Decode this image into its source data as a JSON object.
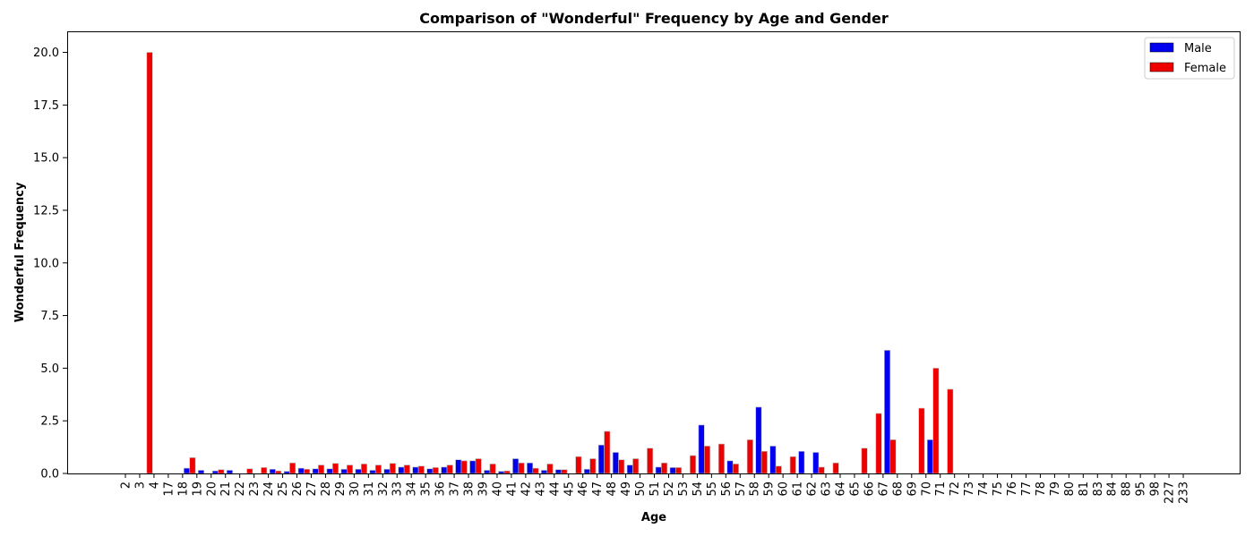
{
  "chart_data": {
    "type": "bar",
    "title": "Comparison of \"Wonderful\" Frequency by Age and Gender",
    "xlabel": "Age",
    "ylabel": "Wonderful Frequency",
    "ylim": [
      0,
      21
    ],
    "yticks": [
      "0.0",
      "2.5",
      "5.0",
      "7.5",
      "10.0",
      "12.5",
      "15.0",
      "17.5",
      "20.0"
    ],
    "grid": false,
    "legend_position": "top-right",
    "categories": [
      "2",
      "3",
      "4",
      "17",
      "18",
      "19",
      "20",
      "21",
      "22",
      "23",
      "24",
      "25",
      "26",
      "27",
      "28",
      "29",
      "30",
      "31",
      "32",
      "33",
      "34",
      "35",
      "36",
      "37",
      "38",
      "39",
      "40",
      "41",
      "42",
      "43",
      "44",
      "45",
      "46",
      "47",
      "48",
      "49",
      "50",
      "51",
      "52",
      "53",
      "54",
      "55",
      "56",
      "57",
      "58",
      "59",
      "60",
      "61",
      "62",
      "63",
      "64",
      "65",
      "66",
      "67",
      "68",
      "69",
      "70",
      "71",
      "72",
      "73",
      "74",
      "75",
      "76",
      "77",
      "78",
      "79",
      "80",
      "81",
      "83",
      "84",
      "88",
      "95",
      "98",
      "227",
      "233"
    ],
    "series": [
      {
        "name": "Male",
        "color": "#0000ee",
        "values": [
          0,
          0,
          0,
          0,
          0.25,
          0.15,
          0.12,
          0.15,
          0,
          0,
          0.2,
          0.1,
          0.25,
          0.22,
          0.22,
          0.2,
          0.2,
          0.15,
          0.2,
          0.3,
          0.3,
          0.22,
          0.3,
          0.65,
          0.6,
          0.15,
          0.1,
          0.7,
          0.5,
          0.15,
          0.18,
          0,
          0.2,
          1.35,
          1.0,
          0.4,
          0,
          0.3,
          0.28,
          0,
          2.3,
          0,
          0.6,
          0,
          3.15,
          1.3,
          0,
          1.05,
          1.0,
          0,
          0,
          0,
          0,
          5.85,
          0,
          0,
          1.6,
          0,
          0,
          0,
          0,
          0,
          0,
          0,
          0,
          0,
          0,
          0,
          0,
          0,
          0,
          0,
          0,
          0,
          0
        ]
      },
      {
        "name": "Female",
        "color": "#ee0000",
        "values": [
          0,
          20,
          0,
          0,
          0.75,
          0,
          0.18,
          0,
          0.22,
          0.28,
          0.12,
          0.5,
          0.2,
          0.4,
          0.48,
          0.4,
          0.45,
          0.4,
          0.48,
          0.4,
          0.35,
          0.28,
          0.4,
          0.6,
          0.7,
          0.45,
          0.12,
          0.5,
          0.25,
          0.45,
          0.18,
          0.8,
          0.7,
          2.0,
          0.65,
          0.7,
          1.2,
          0.5,
          0.28,
          0.85,
          1.3,
          1.4,
          0.45,
          1.6,
          1.05,
          0.35,
          0.8,
          0,
          0.3,
          0.5,
          0,
          1.2,
          2.85,
          1.6,
          0,
          3.1,
          5.0,
          4.0,
          0,
          0,
          0,
          0,
          0,
          0,
          0,
          0,
          0,
          0,
          0,
          0,
          0,
          0,
          0,
          0,
          0
        ]
      }
    ]
  }
}
